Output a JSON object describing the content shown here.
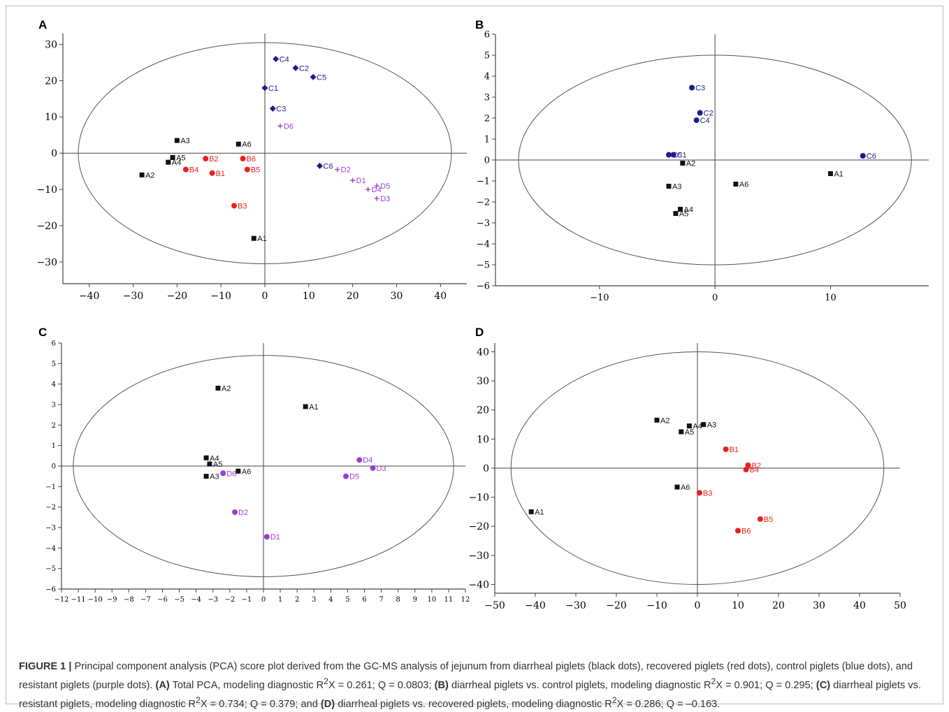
{
  "caption": {
    "figure_label": "FIGURE 1 |",
    "intro": "Principal component analysis (PCA) score plot derived from the GC-MS analysis of jejunum from diarrheal piglets (black dots), recovered piglets (red dots), control piglets (blue dots), and resistant piglets (purple dots).",
    "a_label": "(A)",
    "a_text": "Total PCA, modeling diagnostic R",
    "a_stats": "X = 0.261; Q = 0.0803;",
    "b_label": "(B)",
    "b_text": "diarrheal piglets vs. control piglets, modeling diagnostic R",
    "b_stats": "X = 0.901; Q = 0.295;",
    "c_label": "(C)",
    "c_text": "diarrheal piglets vs. resistant piglets, modeling diagnostic R",
    "c_stats": "X = 0.734; Q = 0.379; and",
    "d_label": "(D)",
    "d_text": "diarrheal piglets vs. recovered piglets, modeling diagnostic R",
    "d_stats": "X = 0.286; Q = –0.163.",
    "superscript": "2"
  },
  "colors": {
    "diarrheal": "#111111",
    "recovered": "#e8201c",
    "control": "#1c1c8a",
    "resistant": "#9b3fd1",
    "axis": "#444444",
    "ellipse": "#555555"
  },
  "chart_data": [
    {
      "id": "A",
      "letter": "A",
      "type": "scatter",
      "xlim": [
        -46,
        46
      ],
      "ylim": [
        -36,
        33
      ],
      "xticks": [
        -40,
        -30,
        -20,
        -10,
        0,
        10,
        20,
        30,
        40
      ],
      "yticks": [
        30,
        20,
        10,
        0,
        -10,
        -20,
        -30
      ],
      "ellipse": {
        "cx": 0,
        "cy": 0,
        "rx": 42.5,
        "ry": 30.5
      },
      "points": [
        {
          "label": "A1",
          "group": "diarrheal",
          "marker": "square",
          "x": -2.5,
          "y": -23.5
        },
        {
          "label": "A2",
          "group": "diarrheal",
          "marker": "square",
          "x": -28,
          "y": -6
        },
        {
          "label": "A3",
          "group": "diarrheal",
          "marker": "square",
          "x": -20,
          "y": 3.5
        },
        {
          "label": "A4",
          "group": "diarrheal",
          "marker": "square",
          "x": -22,
          "y": -2.5
        },
        {
          "label": "A5",
          "group": "diarrheal",
          "marker": "square",
          "x": -21,
          "y": -1.2
        },
        {
          "label": "A6",
          "group": "diarrheal",
          "marker": "square",
          "x": -6,
          "y": 2.5
        },
        {
          "label": "B1",
          "group": "recovered",
          "marker": "circle",
          "x": -12,
          "y": -5.5
        },
        {
          "label": "B2",
          "group": "recovered",
          "marker": "circle",
          "x": -13.5,
          "y": -1.5
        },
        {
          "label": "B3",
          "group": "recovered",
          "marker": "circle",
          "x": -7,
          "y": -14.5
        },
        {
          "label": "B4",
          "group": "recovered",
          "marker": "circle",
          "x": -18,
          "y": -4.5
        },
        {
          "label": "B5",
          "group": "recovered",
          "marker": "circle",
          "x": -4,
          "y": -4.5
        },
        {
          "label": "B6",
          "group": "recovered",
          "marker": "circle",
          "x": -5,
          "y": -1.5
        },
        {
          "label": "C1",
          "group": "control",
          "marker": "diamond",
          "x": 0,
          "y": 18
        },
        {
          "label": "C2",
          "group": "control",
          "marker": "diamond",
          "x": 7,
          "y": 23.5
        },
        {
          "label": "C3",
          "group": "control",
          "marker": "diamond",
          "x": 1.8,
          "y": 12.3
        },
        {
          "label": "C4",
          "group": "control",
          "marker": "diamond",
          "x": 2.5,
          "y": 26
        },
        {
          "label": "C5",
          "group": "control",
          "marker": "diamond",
          "x": 11,
          "y": 21
        },
        {
          "label": "C6",
          "group": "control",
          "marker": "diamond",
          "x": 12.5,
          "y": -3.5
        },
        {
          "label": "D1",
          "group": "resistant",
          "marker": "plus",
          "x": 20,
          "y": -7.5
        },
        {
          "label": "D2",
          "group": "resistant",
          "marker": "plus",
          "x": 16.5,
          "y": -4.5
        },
        {
          "label": "D3",
          "group": "resistant",
          "marker": "plus",
          "x": 25.5,
          "y": -12.5
        },
        {
          "label": "D4",
          "group": "resistant",
          "marker": "plus",
          "x": 23.5,
          "y": -10
        },
        {
          "label": "D5",
          "group": "resistant",
          "marker": "plus",
          "x": 25.5,
          "y": -9
        },
        {
          "label": "D6",
          "group": "resistant",
          "marker": "plus",
          "x": 3.5,
          "y": 7.5
        }
      ]
    },
    {
      "id": "B",
      "letter": "B",
      "type": "scatter",
      "xlim": [
        -19,
        18.5
      ],
      "ylim": [
        -6,
        6
      ],
      "xticks": [
        -10,
        0,
        10
      ],
      "yticks": [
        6,
        5,
        4,
        3,
        2,
        1,
        0,
        -1,
        -2,
        -3,
        -4,
        -5,
        -6
      ],
      "ellipse": {
        "cx": 0,
        "cy": 0,
        "rx": 17.0,
        "ry": 5.0
      },
      "points": [
        {
          "label": "A1",
          "group": "diarrheal",
          "marker": "square",
          "x": 10,
          "y": -0.65
        },
        {
          "label": "A2",
          "group": "diarrheal",
          "marker": "square",
          "x": -2.8,
          "y": -0.15
        },
        {
          "label": "A3",
          "group": "diarrheal",
          "marker": "square",
          "x": -4,
          "y": -1.25
        },
        {
          "label": "A4",
          "group": "diarrheal",
          "marker": "square",
          "x": -3,
          "y": -2.35
        },
        {
          "label": "A5",
          "group": "diarrheal",
          "marker": "square",
          "x": -3.4,
          "y": -2.55
        },
        {
          "label": "A6",
          "group": "diarrheal",
          "marker": "square",
          "x": 1.8,
          "y": -1.15
        },
        {
          "label": "C1",
          "group": "control",
          "marker": "circle",
          "x": -3.6,
          "y": 0.25
        },
        {
          "label": "C2",
          "group": "control",
          "marker": "circle",
          "x": -1.3,
          "y": 2.25
        },
        {
          "label": "C3",
          "group": "control",
          "marker": "circle",
          "x": -2,
          "y": 3.45
        },
        {
          "label": "C4",
          "group": "control",
          "marker": "circle",
          "x": -1.6,
          "y": 1.9
        },
        {
          "label": "C5",
          "group": "control",
          "marker": "circle",
          "x": -4,
          "y": 0.25
        },
        {
          "label": "C6",
          "group": "control",
          "marker": "circle",
          "x": 12.8,
          "y": 0.2
        }
      ]
    },
    {
      "id": "C",
      "letter": "C",
      "type": "scatter",
      "xlim": [
        -12,
        12
      ],
      "ylim": [
        -6,
        6
      ],
      "xticks": [
        -12,
        -11,
        -10,
        -9,
        -8,
        -7,
        -6,
        -5,
        -4,
        -3,
        -2,
        -1,
        0,
        1,
        2,
        3,
        4,
        5,
        6,
        7,
        8,
        9,
        10,
        11,
        12
      ],
      "yticks": [
        6,
        5,
        4,
        3,
        2,
        1,
        0,
        -1,
        -2,
        -3,
        -4,
        -5,
        -6
      ],
      "ellipse": {
        "cx": 0,
        "cy": 0,
        "rx": 11.3,
        "ry": 5.4
      },
      "points": [
        {
          "label": "A1",
          "group": "diarrheal",
          "marker": "square",
          "x": 2.5,
          "y": 2.9
        },
        {
          "label": "A2",
          "group": "diarrheal",
          "marker": "square",
          "x": -2.7,
          "y": 3.8
        },
        {
          "label": "A3",
          "group": "diarrheal",
          "marker": "square",
          "x": -3.4,
          "y": -0.5
        },
        {
          "label": "A4",
          "group": "diarrheal",
          "marker": "square",
          "x": -3.4,
          "y": 0.4
        },
        {
          "label": "A5",
          "group": "diarrheal",
          "marker": "square",
          "x": -3.2,
          "y": 0.1
        },
        {
          "label": "A6",
          "group": "diarrheal",
          "marker": "square",
          "x": -1.5,
          "y": -0.25
        },
        {
          "label": "D1",
          "group": "resistant",
          "marker": "circle",
          "x": 0.2,
          "y": -3.45
        },
        {
          "label": "D2",
          "group": "resistant",
          "marker": "circle",
          "x": -1.7,
          "y": -2.25
        },
        {
          "label": "D3",
          "group": "resistant",
          "marker": "circle",
          "x": 6.5,
          "y": -0.1
        },
        {
          "label": "D4",
          "group": "resistant",
          "marker": "circle",
          "x": 5.7,
          "y": 0.3
        },
        {
          "label": "D5",
          "group": "resistant",
          "marker": "circle",
          "x": 4.9,
          "y": -0.5
        },
        {
          "label": "D6",
          "group": "resistant",
          "marker": "circle",
          "x": -2.4,
          "y": -0.35
        }
      ]
    },
    {
      "id": "D",
      "letter": "D",
      "type": "scatter",
      "xlim": [
        -50,
        50
      ],
      "ylim": [
        -43,
        43
      ],
      "xticks": [
        -50,
        -40,
        -30,
        -20,
        -10,
        0,
        10,
        20,
        30,
        40,
        50
      ],
      "yticks": [
        40,
        30,
        20,
        10,
        0,
        -10,
        -20,
        -30,
        -40
      ],
      "ellipse": {
        "cx": 0,
        "cy": 0,
        "rx": 46,
        "ry": 40
      },
      "points": [
        {
          "label": "A1",
          "group": "diarrheal",
          "marker": "square",
          "x": -41,
          "y": -15
        },
        {
          "label": "A2",
          "group": "diarrheal",
          "marker": "square",
          "x": -10,
          "y": 16.5
        },
        {
          "label": "A3",
          "group": "diarrheal",
          "marker": "square",
          "x": 1.5,
          "y": 15
        },
        {
          "label": "A4",
          "group": "diarrheal",
          "marker": "square",
          "x": -2,
          "y": 14.5
        },
        {
          "label": "A5",
          "group": "diarrheal",
          "marker": "square",
          "x": -4,
          "y": 12.5
        },
        {
          "label": "A6",
          "group": "diarrheal",
          "marker": "square",
          "x": -5,
          "y": -6.5
        },
        {
          "label": "B1",
          "group": "recovered",
          "marker": "circle",
          "x": 7,
          "y": 6.5
        },
        {
          "label": "B2",
          "group": "recovered",
          "marker": "circle",
          "x": 12.5,
          "y": 1
        },
        {
          "label": "B3",
          "group": "recovered",
          "marker": "circle",
          "x": 0.5,
          "y": -8.5
        },
        {
          "label": "B4",
          "group": "recovered",
          "marker": "circle",
          "x": 12,
          "y": -0.5
        },
        {
          "label": "B5",
          "group": "recovered",
          "marker": "circle",
          "x": 15.5,
          "y": -17.5
        },
        {
          "label": "B6",
          "group": "recovered",
          "marker": "circle",
          "x": 10,
          "y": -21.5
        }
      ]
    }
  ]
}
